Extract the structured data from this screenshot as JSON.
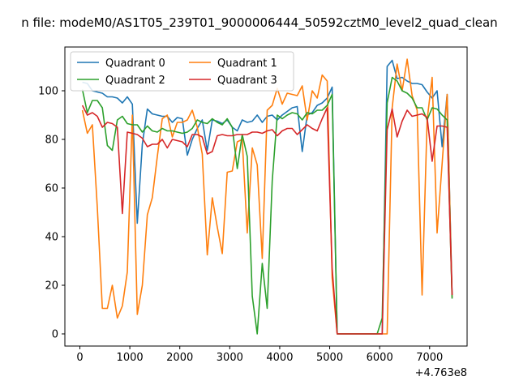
{
  "chart_data": {
    "type": "line",
    "title": "n file: modeM0/AS1T05_239T01_9000006444_50592cztM0_level2_quad_clean",
    "offset_label": "+4.763e8",
    "xlim": [
      -300,
      7750
    ],
    "ylim": [
      -5,
      118
    ],
    "xticks": [
      0,
      1000,
      2000,
      3000,
      4000,
      5000,
      6000,
      7000
    ],
    "yticks": [
      0,
      20,
      40,
      60,
      80,
      100
    ],
    "legend": {
      "placement": "top-left",
      "columns": 2
    },
    "x": [
      50,
      150,
      250,
      350,
      450,
      550,
      650,
      750,
      850,
      950,
      1050,
      1150,
      1250,
      1350,
      1450,
      1550,
      1650,
      1750,
      1850,
      1950,
      2050,
      2150,
      2250,
      2350,
      2450,
      2550,
      2650,
      2750,
      2850,
      2950,
      3050,
      3150,
      3250,
      3350,
      3450,
      3550,
      3650,
      3750,
      3850,
      3950,
      4050,
      4150,
      4250,
      4350,
      4450,
      4550,
      4650,
      4750,
      4850,
      4950,
      5050,
      5150,
      5250,
      5350,
      5450,
      5550,
      5650,
      5750,
      5850,
      5950,
      6050,
      6150,
      6250,
      6350,
      6450,
      6550,
      6650,
      6750,
      6850,
      6950,
      7050,
      7150,
      7250,
      7350,
      7450
    ],
    "series": [
      {
        "name": "Quadrant 0",
        "color": "#1f77b4",
        "values": [
          103.5,
          103,
          100,
          99.5,
          99,
          97.5,
          97.5,
          97,
          95,
          97.5,
          94.5,
          45.5,
          78,
          92.5,
          90.5,
          90,
          89.5,
          89.5,
          87,
          89,
          88.5,
          73.5,
          80,
          84.5,
          88,
          75.5,
          88,
          87.5,
          86.5,
          88,
          85,
          83.5,
          88,
          87,
          87.5,
          90,
          87,
          89.5,
          90,
          88,
          90,
          91.5,
          93,
          93.5,
          75,
          90,
          91,
          94,
          95,
          97,
          101.5,
          0,
          0,
          0,
          0,
          0,
          0,
          0,
          0,
          0,
          0,
          110,
          112.5,
          105,
          105.5,
          104,
          103,
          103,
          102.5,
          99.5,
          97,
          100,
          77,
          98.5,
          16
        ]
      },
      {
        "name": "Quadrant 1",
        "color": "#ff7f0e",
        "values": [
          92,
          82.5,
          86,
          52,
          10.5,
          10.5,
          20,
          6.5,
          11.5,
          25.5,
          90,
          8,
          20,
          49,
          56,
          73,
          88.5,
          90,
          81,
          87,
          87,
          88,
          92,
          85,
          74,
          32.5,
          56,
          44,
          33,
          66.5,
          67,
          79,
          80,
          41.5,
          76.5,
          69.5,
          31,
          92,
          94,
          101,
          94.5,
          99,
          98.5,
          98,
          102,
          88,
          100,
          97,
          106.5,
          104,
          23,
          0,
          0,
          0,
          0,
          0,
          0,
          0,
          0,
          0,
          0,
          0,
          93,
          111,
          100,
          113,
          98,
          92,
          16,
          88,
          105.5,
          41.5,
          70,
          98.5,
          15
        ]
      },
      {
        "name": "Quadrant 2",
        "color": "#2ca02c",
        "values": [
          100.5,
          91,
          96,
          96,
          93,
          77.5,
          75.5,
          88,
          89.5,
          86.5,
          86,
          86,
          83,
          85.5,
          83.5,
          83,
          84.5,
          83.5,
          83.5,
          83,
          82.5,
          83,
          84.5,
          88,
          87,
          86.5,
          88.5,
          87,
          86,
          88.5,
          85,
          68,
          82,
          73,
          15.5,
          0,
          29,
          10.5,
          63,
          90,
          88.5,
          90,
          91,
          90.5,
          88,
          91,
          90.5,
          92,
          92,
          94,
          98.5,
          0,
          0,
          0,
          0,
          0,
          0,
          0,
          0,
          0,
          6.5,
          95,
          105.5,
          104,
          100,
          99,
          97,
          93,
          93,
          88,
          93,
          92.5,
          90,
          88,
          14.5
        ]
      },
      {
        "name": "Quadrant 3",
        "color": "#d62728",
        "values": [
          94,
          90,
          91,
          89.5,
          85,
          87,
          86.5,
          85,
          49.5,
          83,
          82.5,
          82,
          80.5,
          77,
          78,
          78,
          80,
          76.5,
          80,
          79.5,
          79,
          77,
          82,
          82,
          81,
          74,
          75,
          81.5,
          82,
          81.5,
          81.5,
          82,
          82,
          82,
          83,
          83,
          82.5,
          83.5,
          84,
          81.5,
          83.5,
          84.5,
          84.5,
          82,
          84,
          86,
          84.5,
          83.5,
          88.5,
          93,
          27,
          0,
          0,
          0,
          0,
          0,
          0,
          0,
          0,
          0,
          0,
          84,
          92.5,
          81,
          87.5,
          92,
          89.5,
          90,
          90.5,
          89,
          71,
          85.5,
          85.5,
          85,
          16
        ]
      }
    ]
  }
}
